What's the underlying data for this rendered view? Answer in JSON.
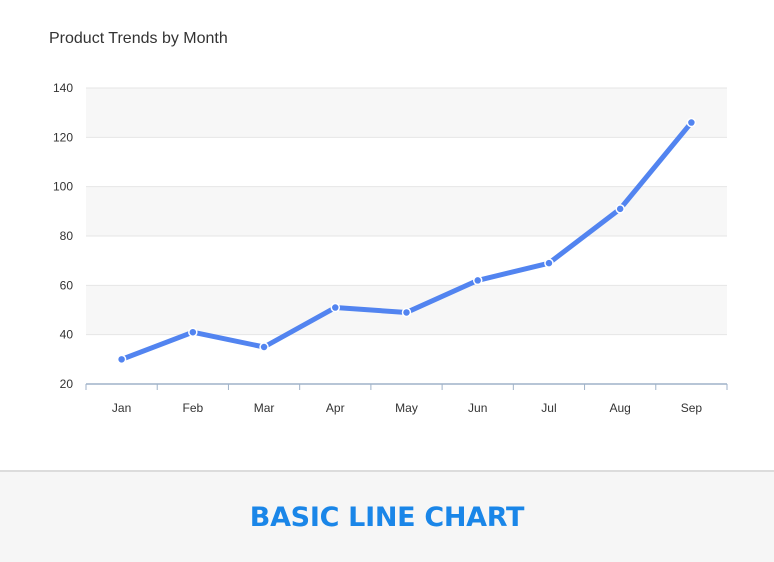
{
  "chart_data": {
    "type": "line",
    "title": "Product Trends by Month",
    "xlabel": "",
    "ylabel": "",
    "categories": [
      "Jan",
      "Feb",
      "Mar",
      "Apr",
      "May",
      "Jun",
      "Jul",
      "Aug",
      "Sep"
    ],
    "series": [
      {
        "values": [
          30,
          41,
          35,
          51,
          49,
          62,
          69,
          91,
          126
        ]
      }
    ],
    "ylim": [
      20,
      140
    ],
    "yticks": [
      20,
      40,
      60,
      80,
      100,
      120,
      140
    ],
    "grid": true,
    "alternating_bands": true,
    "legend": "none",
    "colors": {
      "line": "#5284f0",
      "band": "#f7f7f7",
      "grid": "#e6e6e6",
      "axis": "#9fb2c8",
      "text": "#333333"
    }
  },
  "footer": {
    "label": "BASIC LINE CHART",
    "color": "#1a86e8"
  }
}
